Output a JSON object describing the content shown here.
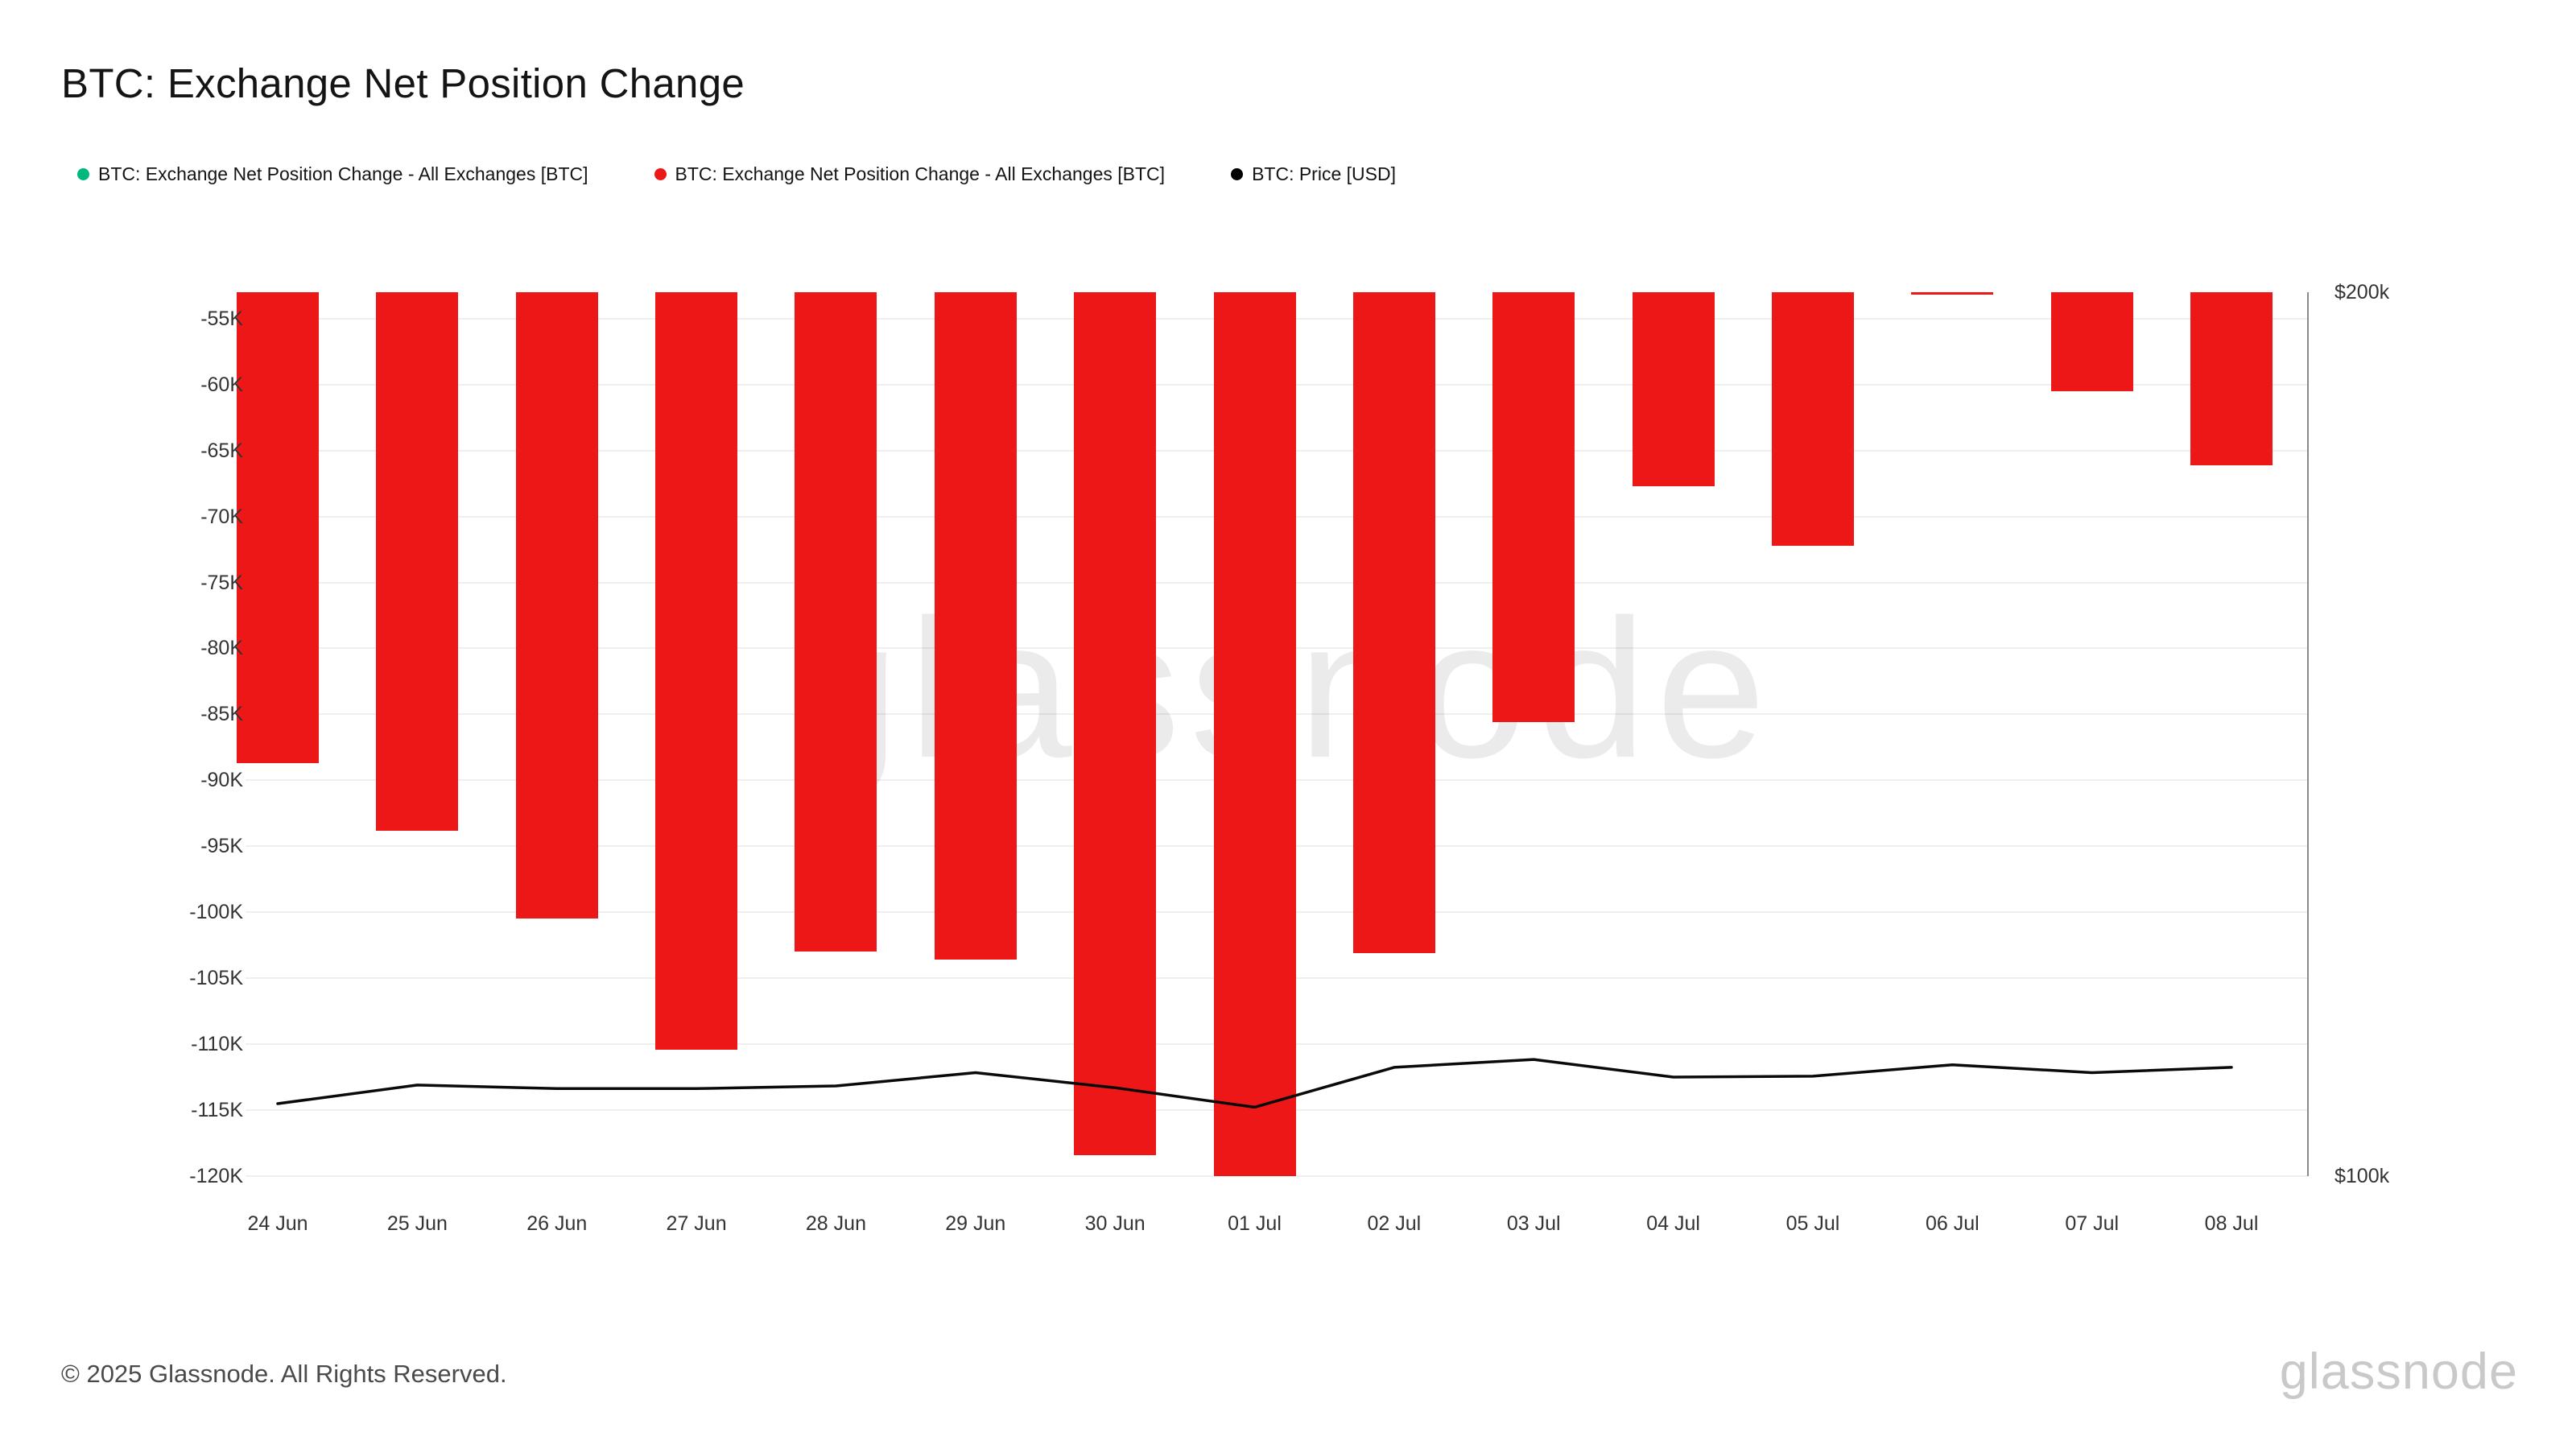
{
  "page": {
    "title": "BTC: Exchange Net Position Change",
    "footer_copyright": "© 2025 Glassnode. All Rights Reserved.",
    "brand_logo": "glassnode",
    "watermark": "glassnode"
  },
  "legend": {
    "items": [
      {
        "label": "BTC: Exchange Net Position Change - All Exchanges [BTC]",
        "color": "#00b87c"
      },
      {
        "label": "BTC: Exchange Net Position Change - All Exchanges [BTC]",
        "color": "#ee1717"
      },
      {
        "label": "BTC: Price [USD]",
        "color": "#000000"
      }
    ]
  },
  "chart_data": {
    "type": "bar",
    "title": "BTC: Exchange Net Position Change",
    "legend_position": "top-left",
    "grid": "horizontal",
    "categories": [
      "24 Jun",
      "25 Jun",
      "26 Jun",
      "27 Jun",
      "28 Jun",
      "29 Jun",
      "30 Jun",
      "01 Jul",
      "02 Jul",
      "03 Jul",
      "04 Jul",
      "05 Jul",
      "06 Jul",
      "07 Jul",
      "08 Jul"
    ],
    "series": [
      {
        "name": "BTC: Exchange Net Position Change - All Exchanges [BTC]",
        "type": "bar",
        "axis": "left",
        "color": "#ee1717",
        "values": [
          -88700,
          -93800,
          -100500,
          -110400,
          -103000,
          -103600,
          -118400,
          -120000,
          -103100,
          -85600,
          -67700,
          -72200,
          -53200,
          -60500,
          -66100
        ]
      },
      {
        "name": "BTC: Price [USD]",
        "type": "line",
        "axis": "right",
        "color": "#0a0a0a",
        "values": [
          108200,
          110300,
          109900,
          109900,
          110200,
          111700,
          110000,
          107800,
          112300,
          113200,
          111200,
          111300,
          112600,
          111700,
          112300
        ]
      }
    ],
    "left_axis": {
      "tick_labels": [
        "-55K",
        "-60K",
        "-65K",
        "-70K",
        "-75K",
        "-80K",
        "-85K",
        "-90K",
        "-95K",
        "-100K",
        "-105K",
        "-110K",
        "-115K",
        "-120K"
      ],
      "tick_values": [
        -55000,
        -60000,
        -65000,
        -70000,
        -75000,
        -80000,
        -85000,
        -90000,
        -95000,
        -100000,
        -105000,
        -110000,
        -115000,
        -120000
      ],
      "top_value": -53000,
      "bottom_value": -120000
    },
    "right_axis": {
      "tick_labels": [
        "$200k",
        "$100k"
      ],
      "tick_values": [
        200000,
        100000
      ],
      "top_value": 200000,
      "bottom_value": 100000
    }
  }
}
